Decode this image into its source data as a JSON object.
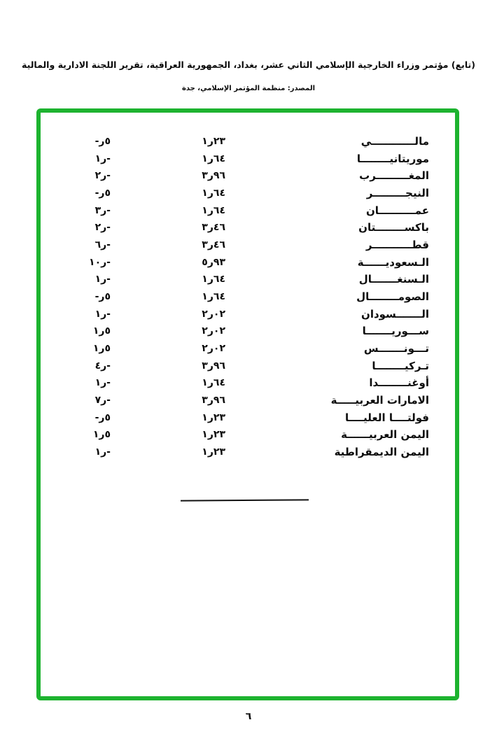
{
  "header": {
    "title": "(تابع) مؤتمر وزراء الخارجية الإسلامي الثاني عشر، بغداد، الجمهورية العراقية، تقرير اللجنة الادارية والمالية",
    "source": "المصدر: منظمة المؤتمر الإسلامي، جدة"
  },
  "frame": {
    "border_color": "#1db32f"
  },
  "footer": {
    "page_number": "٦"
  },
  "table": {
    "rows": [
      {
        "name": "مالــــــــــــي",
        "share": "١ر٢٣",
        "scale": "-ر٥"
      },
      {
        "name": "موريتانيــــــــا",
        "share": "١ر٦٤",
        "scale": "١ر-"
      },
      {
        "name": "المغـــــــــرب",
        "share": "٣ر٩٦",
        "scale": "٢ر-"
      },
      {
        "name": "النيجـــــــــر",
        "share": "١ر٦٤",
        "scale": "-ر٥"
      },
      {
        "name": "عمــــــــــان",
        "share": "١ر٦٤",
        "scale": "٣ر-"
      },
      {
        "name": "باكســــــــتان",
        "share": "٣ر٤٦",
        "scale": "٢ر-"
      },
      {
        "name": "قطـــــــــــر",
        "share": "٣ر٤٦",
        "scale": "٦ر-"
      },
      {
        "name": "الـسعوديــــــة",
        "share": "٥ر٩٣",
        "scale": "١٠ر-"
      },
      {
        "name": "الـسنغـــــــال",
        "share": "١ر٦٤",
        "scale": "١ر-"
      },
      {
        "name": "الصومــــــــال",
        "share": "١ر٦٤",
        "scale": "-ر٥"
      },
      {
        "name": "الـــــــسودان",
        "share": "٢ر٠٢",
        "scale": "١ر-"
      },
      {
        "name": "ســـوريـــــــا",
        "share": "٢ر٠٢",
        "scale": "١ر٥"
      },
      {
        "name": "تـــونـــــــس",
        "share": "٢ر٠٢",
        "scale": "١ر٥"
      },
      {
        "name": "تـركيــــــــا",
        "share": "٣ر٩٦",
        "scale": "٤ر-"
      },
      {
        "name": "أوغنــــــــدا",
        "share": "١ر٦٤",
        "scale": "١ر-"
      },
      {
        "name": "الامارات العربيـــــة",
        "share": "٣ر٩٦",
        "scale": "٧ر-"
      },
      {
        "name": "فولتــــا العليــــا",
        "share": "١ر٢٣",
        "scale": "-ر٥"
      },
      {
        "name": "اليمن العربيــــــة",
        "share": "١ر٢٣",
        "scale": "١ر٥"
      },
      {
        "name": "اليمن الديمقراطية",
        "share": "١ر٢٣",
        "scale": "١ر-"
      }
    ]
  }
}
